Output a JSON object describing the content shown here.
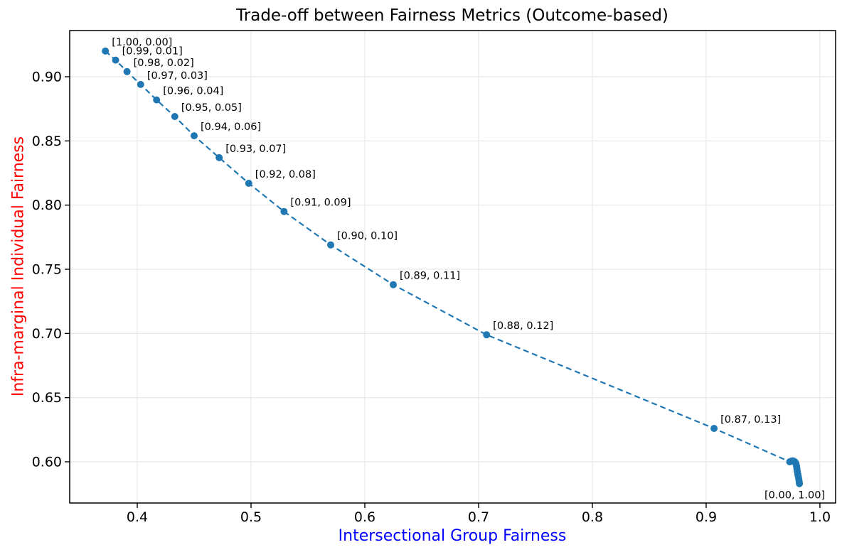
{
  "chart_data": {
    "type": "line",
    "title": "Trade-off between Fairness Metrics (Outcome-based)",
    "xlabel": "Intersectional Group Fairness",
    "ylabel": "Infra-marginal Individual Fairness",
    "legend": false,
    "grid": true,
    "line_style": "dashed",
    "marker": "circle",
    "xlim": [
      0.3406,
      1.0138
    ],
    "ylim": [
      0.5679,
      0.936
    ],
    "xticks": [
      0.4,
      0.5,
      0.6,
      0.7,
      0.8,
      0.9,
      1.0
    ],
    "xtick_labels": [
      "0.4",
      "0.5",
      "0.6",
      "0.7",
      "0.8",
      "0.9",
      "1.0"
    ],
    "yticks": [
      0.6,
      0.65,
      0.7,
      0.75,
      0.8,
      0.85,
      0.9
    ],
    "ytick_labels": [
      "0.60",
      "0.65",
      "0.70",
      "0.75",
      "0.80",
      "0.85",
      "0.90"
    ],
    "colors": {
      "series": "#1f77b4",
      "title": "#000000",
      "xlabel": "#0000ff",
      "ylabel": "#ff0000",
      "tick_labels": "#000000",
      "grid": "#e8e8e8",
      "spines": "#000000",
      "background": "#ffffff",
      "annotation": "#000000"
    },
    "points": [
      {
        "x": 0.372,
        "y": 0.92,
        "label": "[1.00, 0.00]",
        "label_pos": "above-right"
      },
      {
        "x": 0.381,
        "y": 0.913,
        "label": "[0.99, 0.01]",
        "label_pos": "above-right"
      },
      {
        "x": 0.391,
        "y": 0.904,
        "label": "[0.98, 0.02]",
        "label_pos": "above-right"
      },
      {
        "x": 0.403,
        "y": 0.894,
        "label": "[0.97, 0.03]",
        "label_pos": "above-right"
      },
      {
        "x": 0.417,
        "y": 0.882,
        "label": "[0.96, 0.04]",
        "label_pos": "above-right"
      },
      {
        "x": 0.433,
        "y": 0.869,
        "label": "[0.95, 0.05]",
        "label_pos": "above-right"
      },
      {
        "x": 0.45,
        "y": 0.854,
        "label": "[0.94, 0.06]",
        "label_pos": "above-right"
      },
      {
        "x": 0.472,
        "y": 0.837,
        "label": "[0.93, 0.07]",
        "label_pos": "above-right"
      },
      {
        "x": 0.498,
        "y": 0.817,
        "label": "[0.92, 0.08]",
        "label_pos": "above-right"
      },
      {
        "x": 0.529,
        "y": 0.795,
        "label": "[0.91, 0.09]",
        "label_pos": "above-right"
      },
      {
        "x": 0.57,
        "y": 0.769,
        "label": "[0.90, 0.10]",
        "label_pos": "above-right"
      },
      {
        "x": 0.625,
        "y": 0.738,
        "label": "[0.89, 0.11]",
        "label_pos": "above-right"
      },
      {
        "x": 0.707,
        "y": 0.699,
        "label": "[0.88, 0.12]",
        "label_pos": "above-right"
      },
      {
        "x": 0.907,
        "y": 0.626,
        "label": "[0.87, 0.13]",
        "label_pos": "above-right"
      },
      {
        "x": 0.9735,
        "y": 0.6,
        "label": null
      },
      {
        "x": 0.9748,
        "y": 0.6005,
        "label": null
      },
      {
        "x": 0.976,
        "y": 0.6008,
        "label": null
      },
      {
        "x": 0.9772,
        "y": 0.6005,
        "label": null
      },
      {
        "x": 0.9782,
        "y": 0.5998,
        "label": null
      },
      {
        "x": 0.979,
        "y": 0.5985,
        "label": null
      },
      {
        "x": 0.9795,
        "y": 0.5965,
        "label": null
      },
      {
        "x": 0.9798,
        "y": 0.5945,
        "label": null
      },
      {
        "x": 0.9802,
        "y": 0.5925,
        "label": null
      },
      {
        "x": 0.9806,
        "y": 0.5905,
        "label": null
      },
      {
        "x": 0.981,
        "y": 0.5885,
        "label": null
      },
      {
        "x": 0.9814,
        "y": 0.5865,
        "label": null
      },
      {
        "x": 0.9818,
        "y": 0.5845,
        "label": null
      },
      {
        "x": 0.982,
        "y": 0.583,
        "label": "[0.00, 1.00]",
        "label_pos": "below-left"
      }
    ]
  }
}
